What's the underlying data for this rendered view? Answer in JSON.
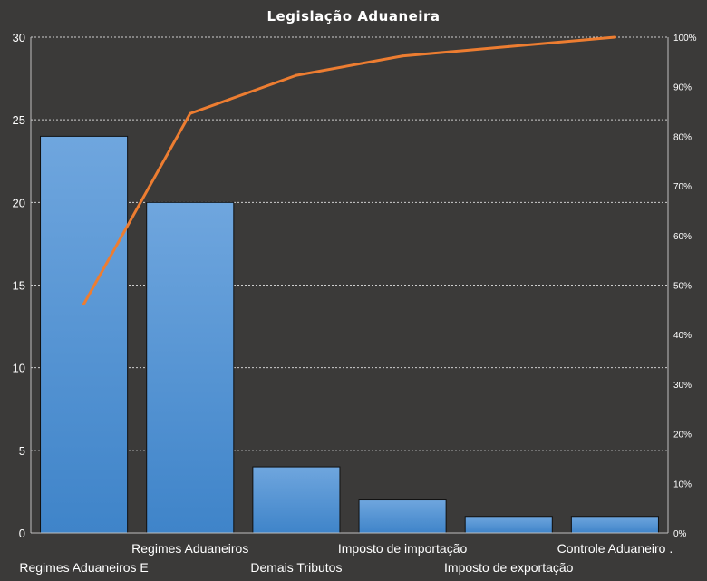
{
  "chart_data": {
    "type": "bar",
    "title": "Legislação Aduaneira",
    "categories": [
      "Regimes Aduaneiros E",
      "Regimes Aduaneiros",
      "Demais Tributos",
      "Imposto de importação",
      "Imposto de exportação",
      "Controle Aduaneiro ."
    ],
    "series": [
      {
        "type": "bar",
        "values": [
          24,
          20,
          4,
          2,
          1,
          1
        ]
      },
      {
        "type": "line",
        "axis": "right",
        "values": [
          46.2,
          84.6,
          92.3,
          96.2,
          98.1,
          100
        ]
      }
    ],
    "ylim": [
      0,
      30
    ],
    "yticks": [
      0,
      5,
      10,
      15,
      20,
      25,
      30
    ],
    "y2lim": [
      0,
      100
    ],
    "y2ticks": [
      "0%",
      "10%",
      "20%",
      "30%",
      "40%",
      "50%",
      "60%",
      "70%",
      "80%",
      "90%",
      "100%"
    ],
    "xlabel": "",
    "ylabel": "",
    "grid": true,
    "colors": {
      "bar": "#5b9bd5",
      "line": "#ed7d31",
      "background": "#3b3a39",
      "text": "#ffffff"
    }
  }
}
